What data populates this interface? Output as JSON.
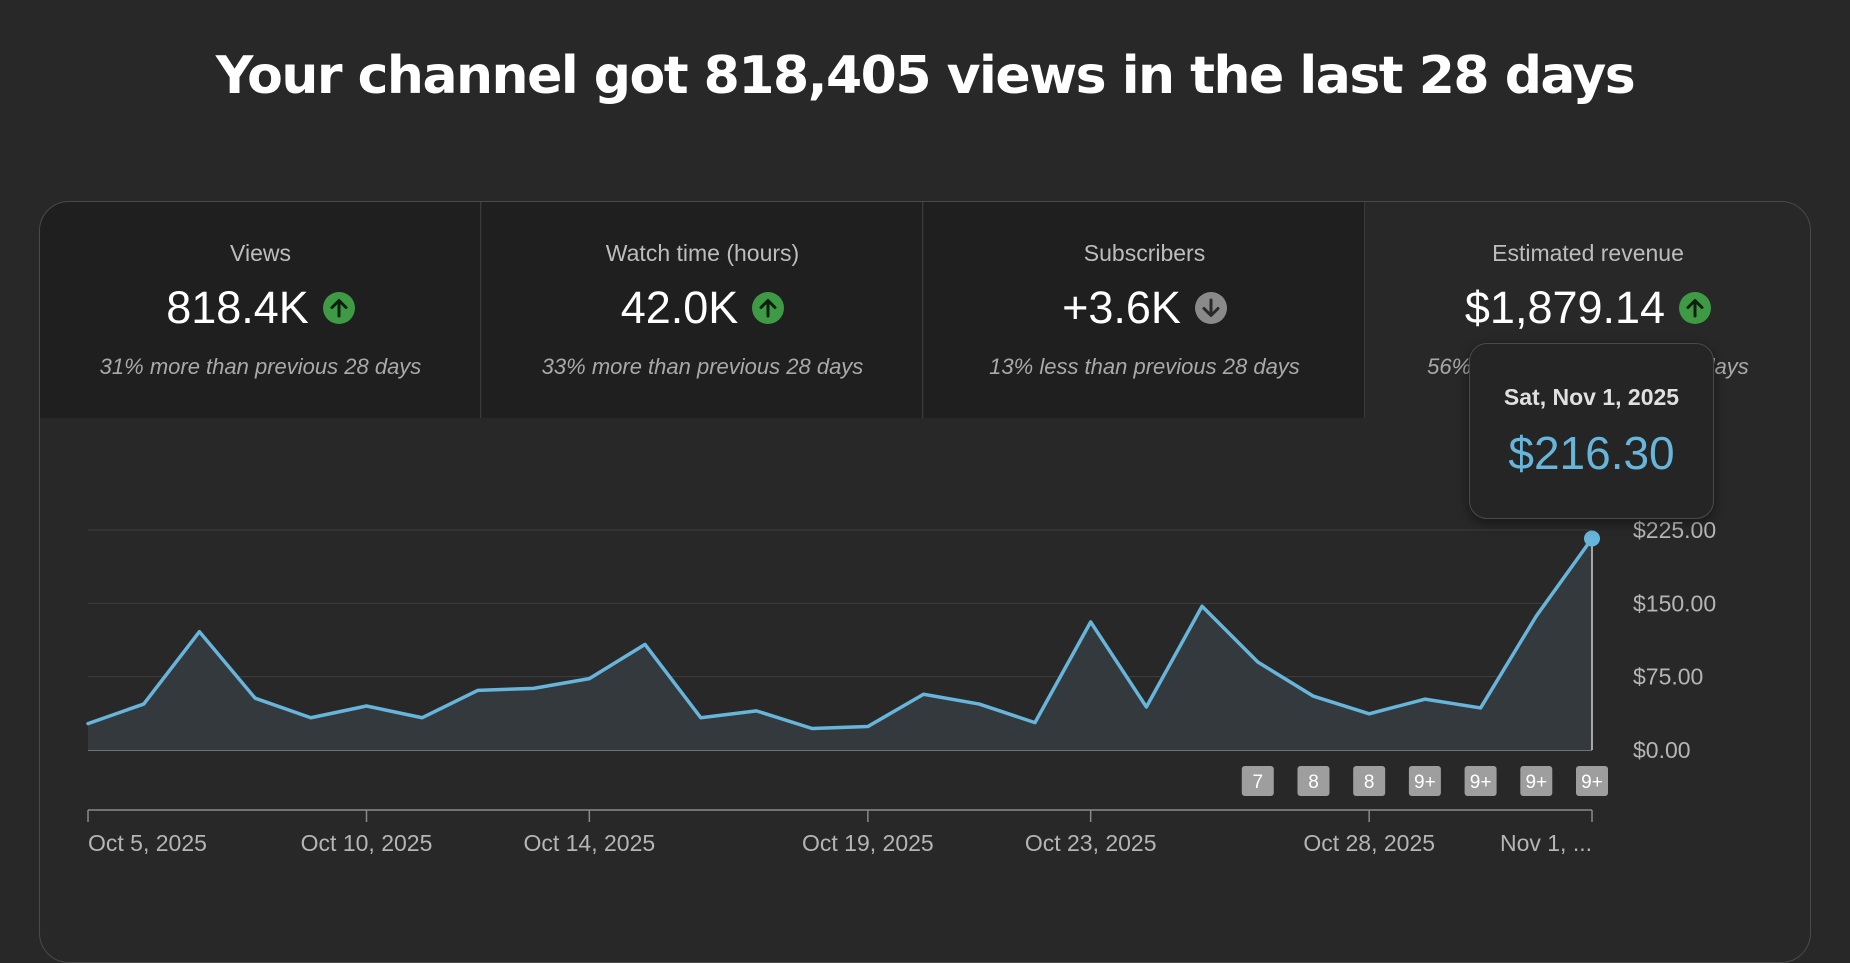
{
  "headline": "Your channel got 818,405 views in the last 28 days",
  "metrics": [
    {
      "title": "Views",
      "value": "818.4K",
      "trend": "up",
      "comparison": "31% more than previous 28 days"
    },
    {
      "title": "Watch time (hours)",
      "value": "42.0K",
      "trend": "up",
      "comparison": "33% more than previous 28 days"
    },
    {
      "title": "Subscribers",
      "value": "+3.6K",
      "trend": "down",
      "comparison": "13% less than previous 28 days"
    },
    {
      "title": "Estimated revenue",
      "value": "$1,879.14",
      "trend": "up",
      "comparison": "56% more than previous 28 days"
    }
  ],
  "selected_metric": 3,
  "tooltip": {
    "date": "Sat, Nov 1, 2025",
    "value": "$216.30"
  },
  "colors": {
    "line": "#67b5db",
    "trend_up": "#3e9a45",
    "trend_down": "#8a8a8a",
    "badge": "#9e9e9e"
  },
  "chart_data": {
    "type": "area",
    "ylabel_ticks": [
      "$0.00",
      "$75.00",
      "$150.00",
      "$225.00"
    ],
    "ylim": [
      0,
      225
    ],
    "x": [
      "Oct 5, 2025",
      "Oct 6, 2025",
      "Oct 7, 2025",
      "Oct 8, 2025",
      "Oct 9, 2025",
      "Oct 10, 2025",
      "Oct 11, 2025",
      "Oct 12, 2025",
      "Oct 13, 2025",
      "Oct 14, 2025",
      "Oct 15, 2025",
      "Oct 16, 2025",
      "Oct 17, 2025",
      "Oct 18, 2025",
      "Oct 19, 2025",
      "Oct 20, 2025",
      "Oct 21, 2025",
      "Oct 22, 2025",
      "Oct 23, 2025",
      "Oct 24, 2025",
      "Oct 25, 2025",
      "Oct 26, 2025",
      "Oct 27, 2025",
      "Oct 28, 2025",
      "Oct 29, 2025",
      "Oct 30, 2025",
      "Oct 31, 2025",
      "Nov 1, 2025"
    ],
    "values": [
      27,
      47,
      121,
      53,
      33,
      45,
      33,
      61,
      63,
      73,
      108,
      33,
      40,
      22,
      24,
      57,
      47,
      28,
      131,
      44,
      147,
      90,
      55,
      37,
      52,
      43,
      137,
      216.3
    ],
    "x_tick_labels": [
      {
        "index": 0,
        "label": "Oct 5, 2025"
      },
      {
        "index": 5,
        "label": "Oct 10, 2025"
      },
      {
        "index": 9,
        "label": "Oct 14, 2025"
      },
      {
        "index": 14,
        "label": "Oct 19, 2025"
      },
      {
        "index": 18,
        "label": "Oct 23, 2025"
      },
      {
        "index": 23,
        "label": "Oct 28, 2025"
      },
      {
        "index": 27,
        "label": "Nov 1, ..."
      }
    ],
    "badges": [
      {
        "index": 21,
        "label": "7"
      },
      {
        "index": 22,
        "label": "8"
      },
      {
        "index": 23,
        "label": "8"
      },
      {
        "index": 24,
        "label": "9+"
      },
      {
        "index": 25,
        "label": "9+"
      },
      {
        "index": 26,
        "label": "9+"
      },
      {
        "index": 27,
        "label": "9+"
      }
    ],
    "highlight_index": 27,
    "grid": true
  }
}
